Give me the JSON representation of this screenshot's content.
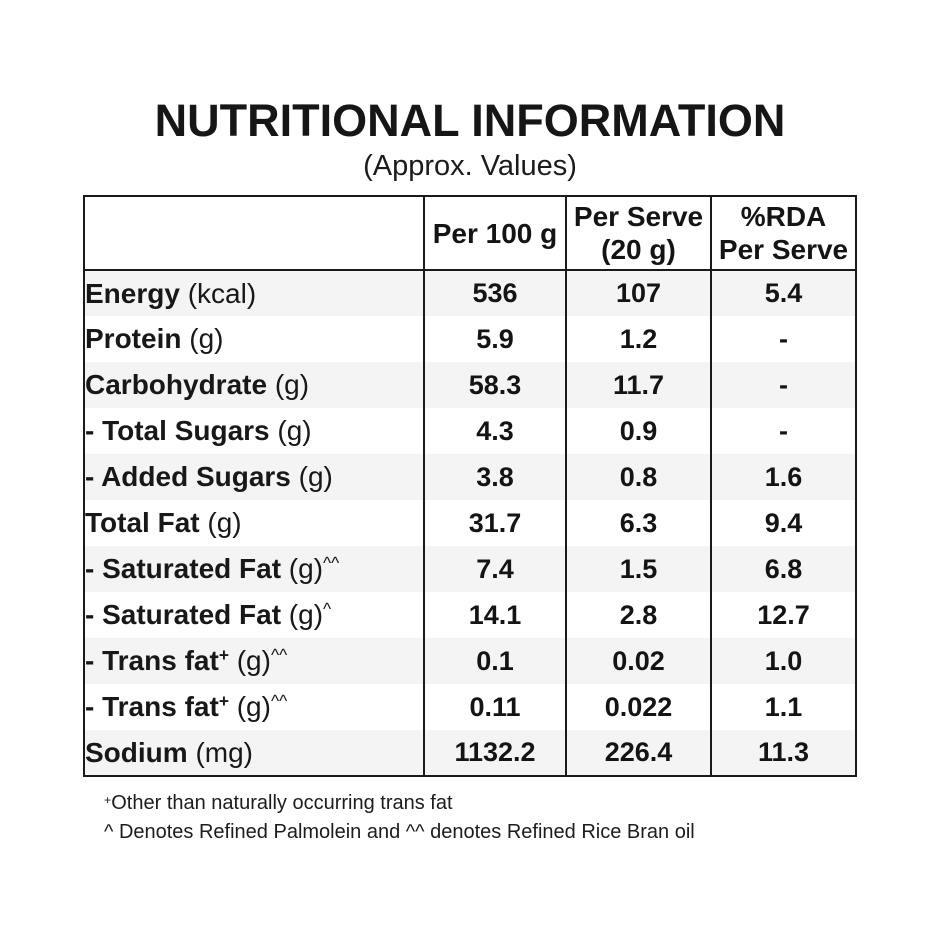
{
  "title": "NUTRITIONAL INFORMATION",
  "subtitle": "(Approx. Values)",
  "table": {
    "columns": [
      "",
      "Per 100 g",
      "Per Serve\n(20 g)",
      "%RDA\nPer Serve"
    ],
    "rows": [
      {
        "name": "Energy",
        "name_sup": "",
        "unit": "(kcal)",
        "unit_sup": "",
        "indent": 0,
        "per_100g": "536",
        "per_serve": "107",
        "rda_per_serve": "5.4"
      },
      {
        "name": "Protein",
        "name_sup": "",
        "unit": "(g)",
        "unit_sup": "",
        "indent": 0,
        "per_100g": "5.9",
        "per_serve": "1.2",
        "rda_per_serve": "-"
      },
      {
        "name": "Carbohydrate",
        "name_sup": "",
        "unit": "(g)",
        "unit_sup": "",
        "indent": 0,
        "per_100g": "58.3",
        "per_serve": "11.7",
        "rda_per_serve": "-"
      },
      {
        "name": "- Total Sugars",
        "name_sup": "",
        "unit": "(g)",
        "unit_sup": "",
        "indent": 1,
        "per_100g": "4.3",
        "per_serve": "0.9",
        "rda_per_serve": "-"
      },
      {
        "name": "- Added Sugars",
        "name_sup": "",
        "unit": "(g)",
        "unit_sup": "",
        "indent": 2,
        "per_100g": "3.8",
        "per_serve": "0.8",
        "rda_per_serve": "1.6"
      },
      {
        "name": "Total Fat",
        "name_sup": "",
        "unit": "(g)",
        "unit_sup": "",
        "indent": 0,
        "per_100g": "31.7",
        "per_serve": "6.3",
        "rda_per_serve": "9.4"
      },
      {
        "name": "- Saturated Fat",
        "name_sup": "",
        "unit": "(g)",
        "unit_sup": "^^",
        "indent": 1,
        "per_100g": "7.4",
        "per_serve": "1.5",
        "rda_per_serve": "6.8"
      },
      {
        "name": "- Saturated Fat",
        "name_sup": "",
        "unit": "(g)",
        "unit_sup": "^",
        "indent": 1,
        "per_100g": "14.1",
        "per_serve": "2.8",
        "rda_per_serve": "12.7"
      },
      {
        "name": "- Trans fat",
        "name_sup": "+",
        "unit": "(g)",
        "unit_sup": "^^",
        "indent": 1,
        "per_100g": "0.1",
        "per_serve": "0.02",
        "rda_per_serve": "1.0"
      },
      {
        "name": "- Trans fat",
        "name_sup": "+",
        "unit": "(g)",
        "unit_sup": "^^",
        "indent": 1,
        "per_100g": "0.11",
        "per_serve": "0.022",
        "rda_per_serve": "1.1"
      },
      {
        "name": "Sodium",
        "name_sup": "",
        "unit": "(mg)",
        "unit_sup": "",
        "indent": 0,
        "per_100g": "1132.2",
        "per_serve": "226.4",
        "rda_per_serve": "11.3"
      }
    ]
  },
  "footnotes": [
    {
      "sup": "+",
      "text": "Other than naturally occurring trans fat"
    },
    {
      "sup": "",
      "text": "^ Denotes Refined Palmolein and ^^ denotes Refined Rice Bran oil"
    }
  ],
  "colors": {
    "stripe": "#f4f4f4",
    "border": "#1a1a1a",
    "text": "#181818",
    "background": "#ffffff"
  }
}
